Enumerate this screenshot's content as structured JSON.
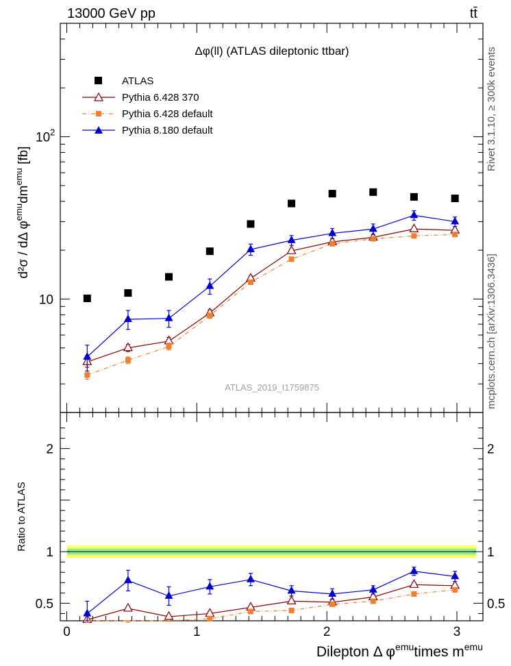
{
  "header": {
    "left": "13000 GeV pp",
    "right": "tt̄"
  },
  "side_labels": {
    "rivet": "Rivet 3.1.10, ≥ 300k events",
    "mcplots": "mcplots.cern.ch [arXiv:1306.3436]"
  },
  "colors": {
    "atlas": "#000000",
    "pythia6_370": "#800000",
    "pythia6_default": "#f08030",
    "pythia8_default": "#0000cc",
    "band_inner": "#90ee90",
    "band_outer": "#ffff66",
    "watermark": "#a0a0a0"
  },
  "chart_data": [
    {
      "type": "line",
      "panel": "main",
      "title": "Δφ(ll) (ATLAS dileptonic ttbar)",
      "watermark": "ATLAS_2019_I1759875",
      "ylabel": {
        "main": "d²σ / dΔ φ",
        "sup1": "emu",
        "mid": "dm",
        "sup2": "emu",
        "unit": " [fb]"
      },
      "yscale": "log",
      "ylim": [
        2.0,
        500
      ],
      "xlim": [
        -0.05,
        3.2
      ],
      "ytick_labels": [
        {
          "value": 10,
          "label": "10"
        },
        {
          "value": 100,
          "label": "10",
          "sup": "2"
        }
      ],
      "x": [
        0.157,
        0.471,
        0.785,
        1.1,
        1.414,
        1.728,
        2.042,
        2.356,
        2.67,
        2.985
      ],
      "series": [
        {
          "name": "ATLAS",
          "marker": "square",
          "line": "none",
          "values": [
            10.1,
            10.9,
            13.7,
            19.7,
            29.0,
            38.8,
            44.6,
            45.6,
            42.6,
            41.7
          ]
        },
        {
          "name": "Pythia 6.428 370",
          "marker": "open-triangle",
          "line": "solid",
          "values": [
            4.1,
            5.0,
            5.5,
            8.2,
            13.4,
            19.8,
            22.5,
            24.0,
            27.0,
            26.5
          ],
          "errors": [
            0.3,
            0.25,
            0.3,
            0.4,
            0.5,
            0.6,
            0.6,
            0.7,
            0.8,
            0.8
          ]
        },
        {
          "name": "Pythia 6.428 default",
          "marker": "filled-square-small",
          "line": "dash-dot",
          "values": [
            3.4,
            4.2,
            5.1,
            7.9,
            12.7,
            17.6,
            21.9,
            23.5,
            24.5,
            25.0
          ],
          "errors": [
            0.2,
            0.2,
            0.25,
            0.3,
            0.4,
            0.5,
            0.6,
            0.6,
            0.7,
            0.7
          ]
        },
        {
          "name": "Pythia 8.180 default",
          "marker": "filled-triangle",
          "line": "solid",
          "values": [
            4.4,
            7.5,
            7.6,
            12.0,
            20.2,
            23.0,
            25.4,
            27.0,
            32.8,
            30.0
          ],
          "errors": [
            0.8,
            1.0,
            0.9,
            1.3,
            1.6,
            1.6,
            1.8,
            2.0,
            2.2,
            2.0
          ]
        }
      ]
    },
    {
      "type": "line",
      "panel": "ratio",
      "ylabel": "Ratio to ATLAS",
      "xlabel": {
        "pre": "Dilepton Δ φ",
        "sup1": "emu",
        "mid": "times m",
        "sup2": "emu"
      },
      "ylim": [
        0.33,
        2.35
      ],
      "xlim": [
        -0.05,
        3.2
      ],
      "ytick_labels": [
        {
          "value": 0.5,
          "label": "0.5"
        },
        {
          "value": 1,
          "label": "1"
        },
        {
          "value": 2,
          "label": "2"
        }
      ],
      "xtick_labels": [
        {
          "value": 0,
          "label": "0"
        },
        {
          "value": 1,
          "label": "1"
        },
        {
          "value": 2,
          "label": "2"
        },
        {
          "value": 3,
          "label": "3"
        }
      ],
      "band": {
        "inner": [
          0.97,
          1.03
        ],
        "outer": [
          0.94,
          1.06
        ]
      },
      "x": [
        0.157,
        0.471,
        0.785,
        1.1,
        1.414,
        1.728,
        2.042,
        2.356,
        2.67,
        2.985
      ],
      "series": [
        {
          "name": "Pythia 6.428 370",
          "marker": "open-triangle",
          "line": "solid",
          "values": [
            0.34,
            0.45,
            0.37,
            0.4,
            0.46,
            0.52,
            0.51,
            0.56,
            0.68,
            0.67
          ],
          "errors": [
            0.02,
            0.02,
            0.02,
            0.02,
            0.02,
            0.02,
            0.02,
            0.02,
            0.02,
            0.02
          ]
        },
        {
          "name": "Pythia 6.428 default",
          "marker": "filled-square-small",
          "line": "dash-dot",
          "values": [
            0.3,
            0.3,
            0.31,
            0.35,
            0.42,
            0.43,
            0.49,
            0.52,
            0.59,
            0.63
          ],
          "errors": [
            0.015,
            0.015,
            0.015,
            0.015,
            0.015,
            0.015,
            0.015,
            0.015,
            0.015,
            0.015
          ]
        },
        {
          "name": "Pythia 8.180 default",
          "marker": "filled-triangle",
          "line": "solid",
          "values": [
            0.4,
            0.72,
            0.57,
            0.66,
            0.73,
            0.62,
            0.59,
            0.63,
            0.81,
            0.76
          ],
          "errors": [
            0.12,
            0.1,
            0.09,
            0.07,
            0.06,
            0.05,
            0.05,
            0.04,
            0.04,
            0.05
          ]
        }
      ]
    }
  ]
}
